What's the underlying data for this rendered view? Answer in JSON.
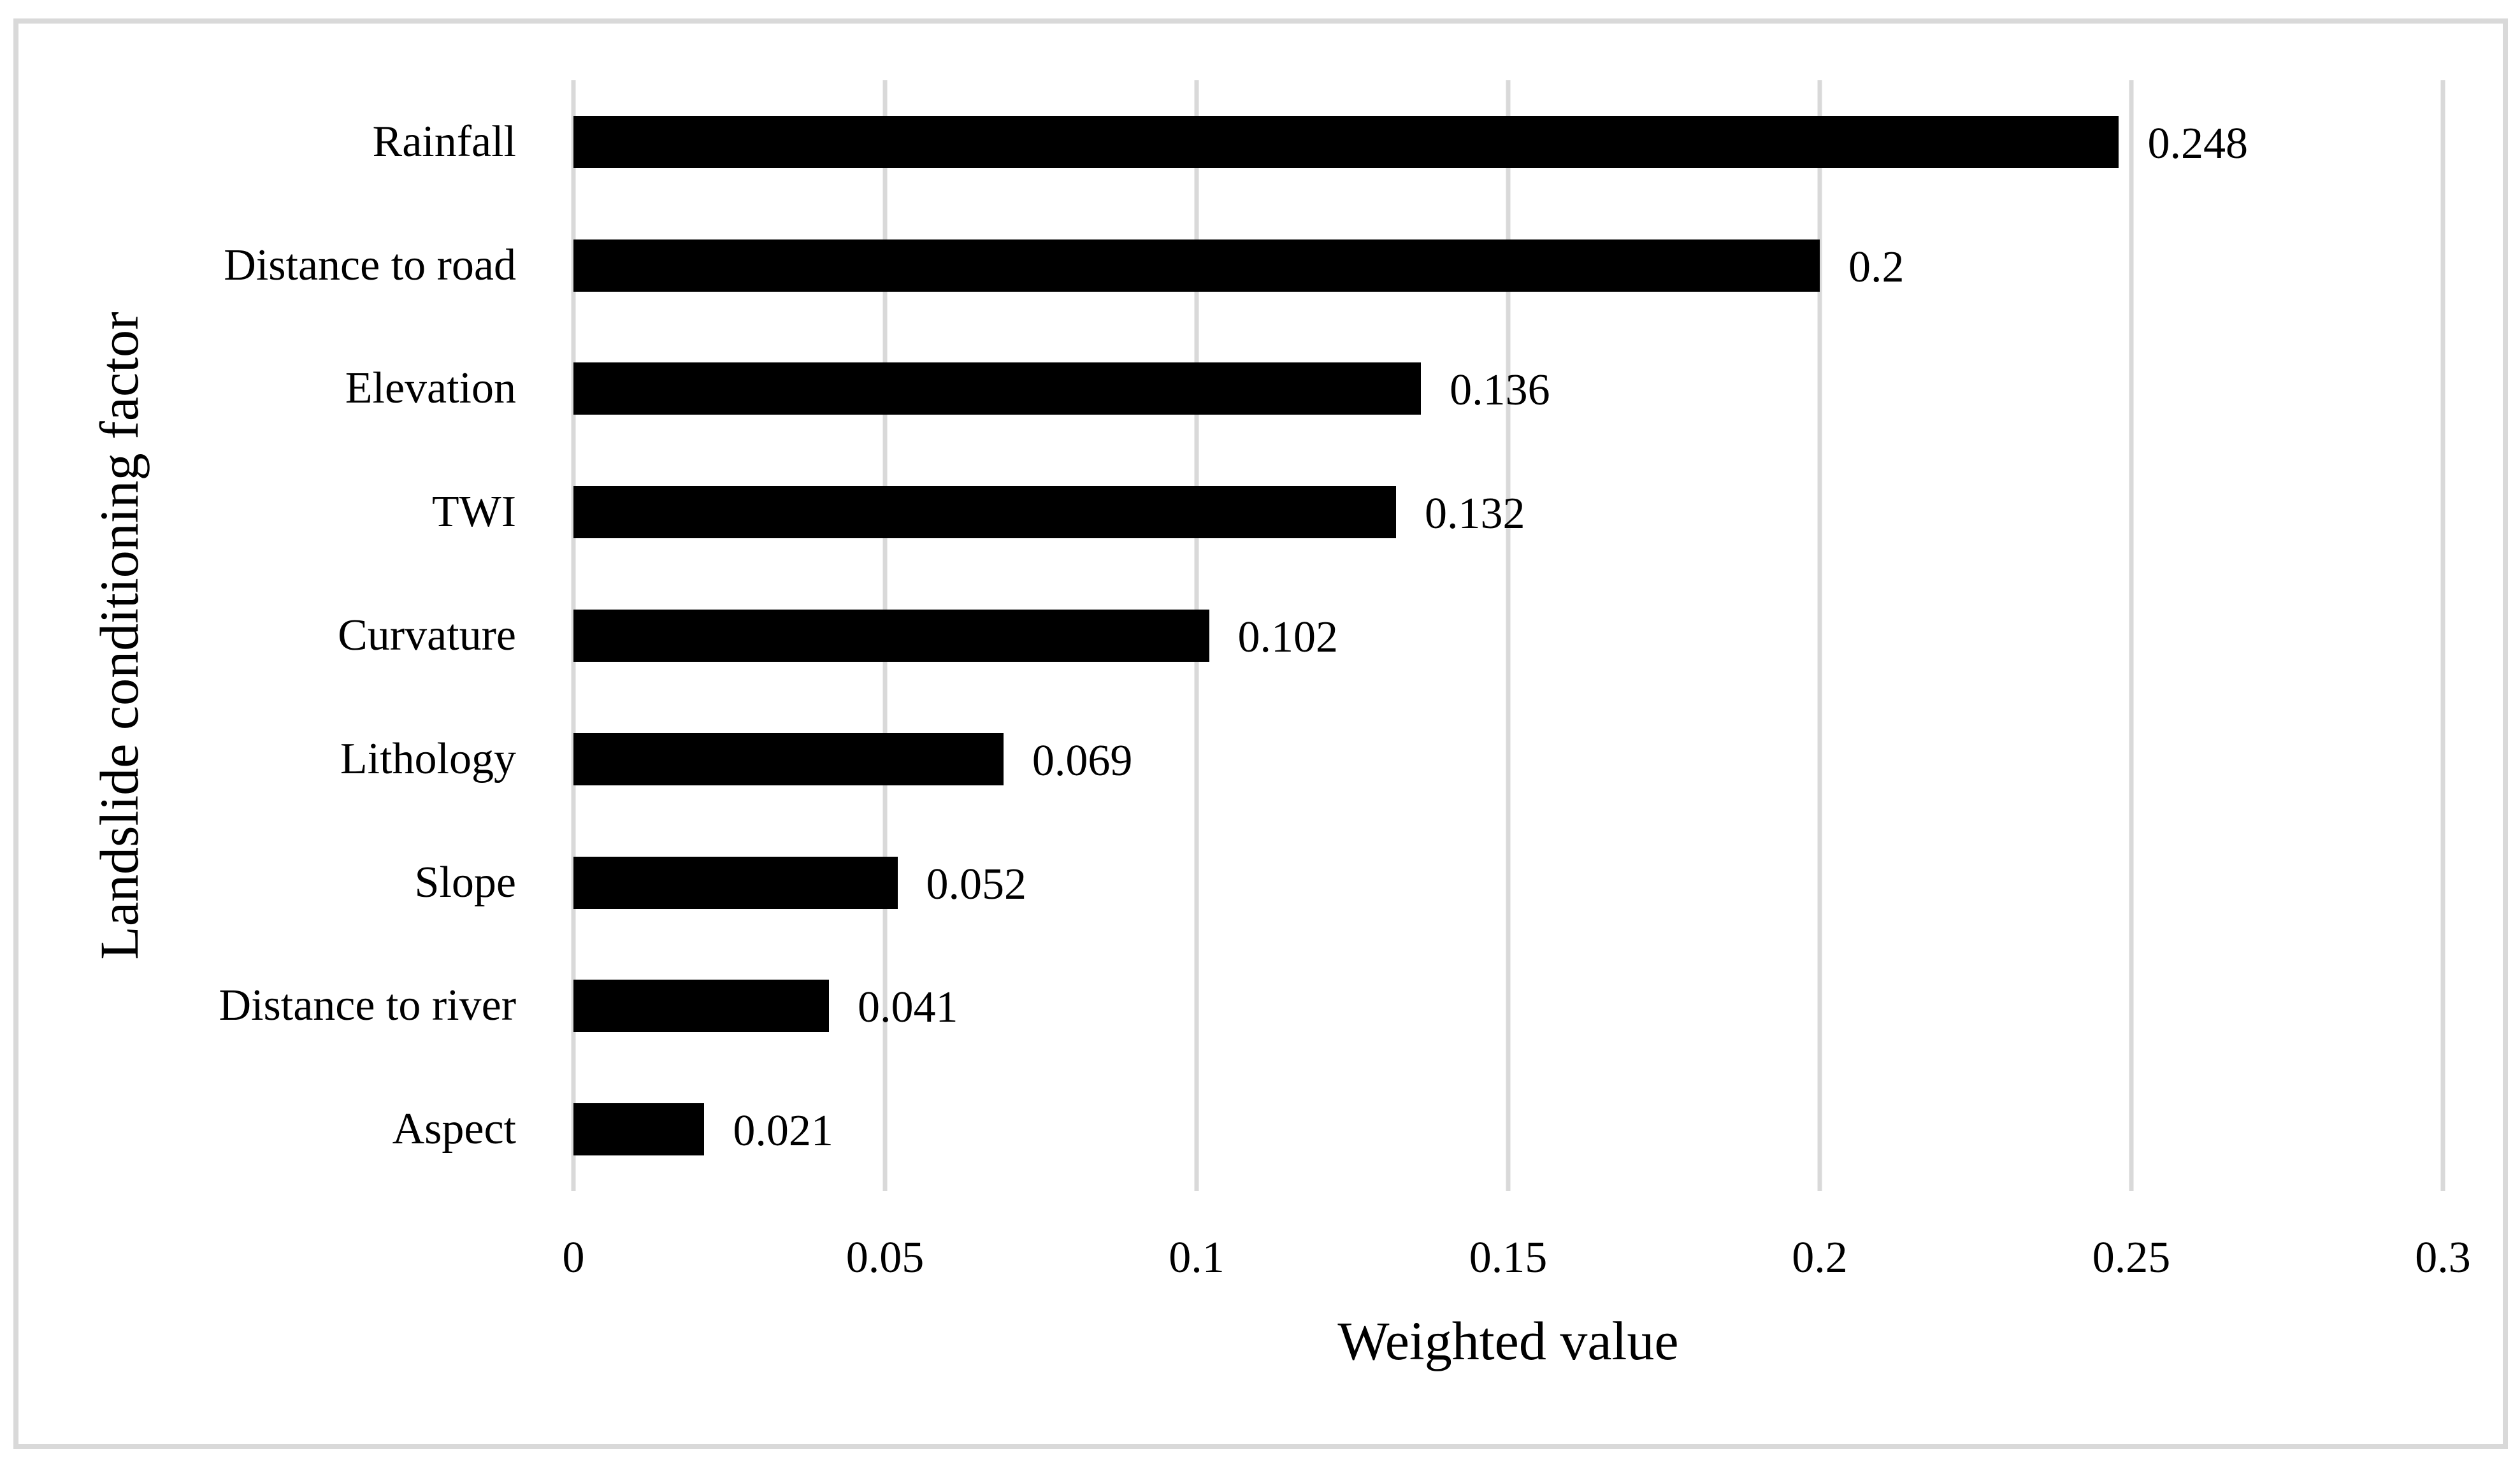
{
  "chart_data": {
    "type": "bar",
    "orientation": "horizontal",
    "xlabel": "Weighted value",
    "ylabel": "Landslide conditioning factor",
    "xlim": [
      0,
      0.3
    ],
    "grid": true,
    "legend": false,
    "bar_color": "#000000",
    "gridline_color": "#d9d9d9",
    "frame_color": "#d9d9d9",
    "categories": [
      "Rainfall",
      "Distance to road",
      "Elevation",
      "TWI",
      "Curvature",
      "Lithology",
      "Slope",
      "Distance to river",
      "Aspect"
    ],
    "values": [
      0.248,
      0.2,
      0.136,
      0.132,
      0.102,
      0.069,
      0.052,
      0.041,
      0.021
    ],
    "value_labels": [
      "0.248",
      "0.2",
      "0.136",
      "0.132",
      "0.102",
      "0.069",
      "0.052",
      "0.041",
      "0.021"
    ],
    "x_ticks": [
      "0",
      "0.05",
      "0.1",
      "0.15",
      "0.2",
      "0.25",
      "0.3"
    ],
    "x_tick_values": [
      0,
      0.05,
      0.1,
      0.15,
      0.2,
      0.25,
      0.3
    ]
  }
}
